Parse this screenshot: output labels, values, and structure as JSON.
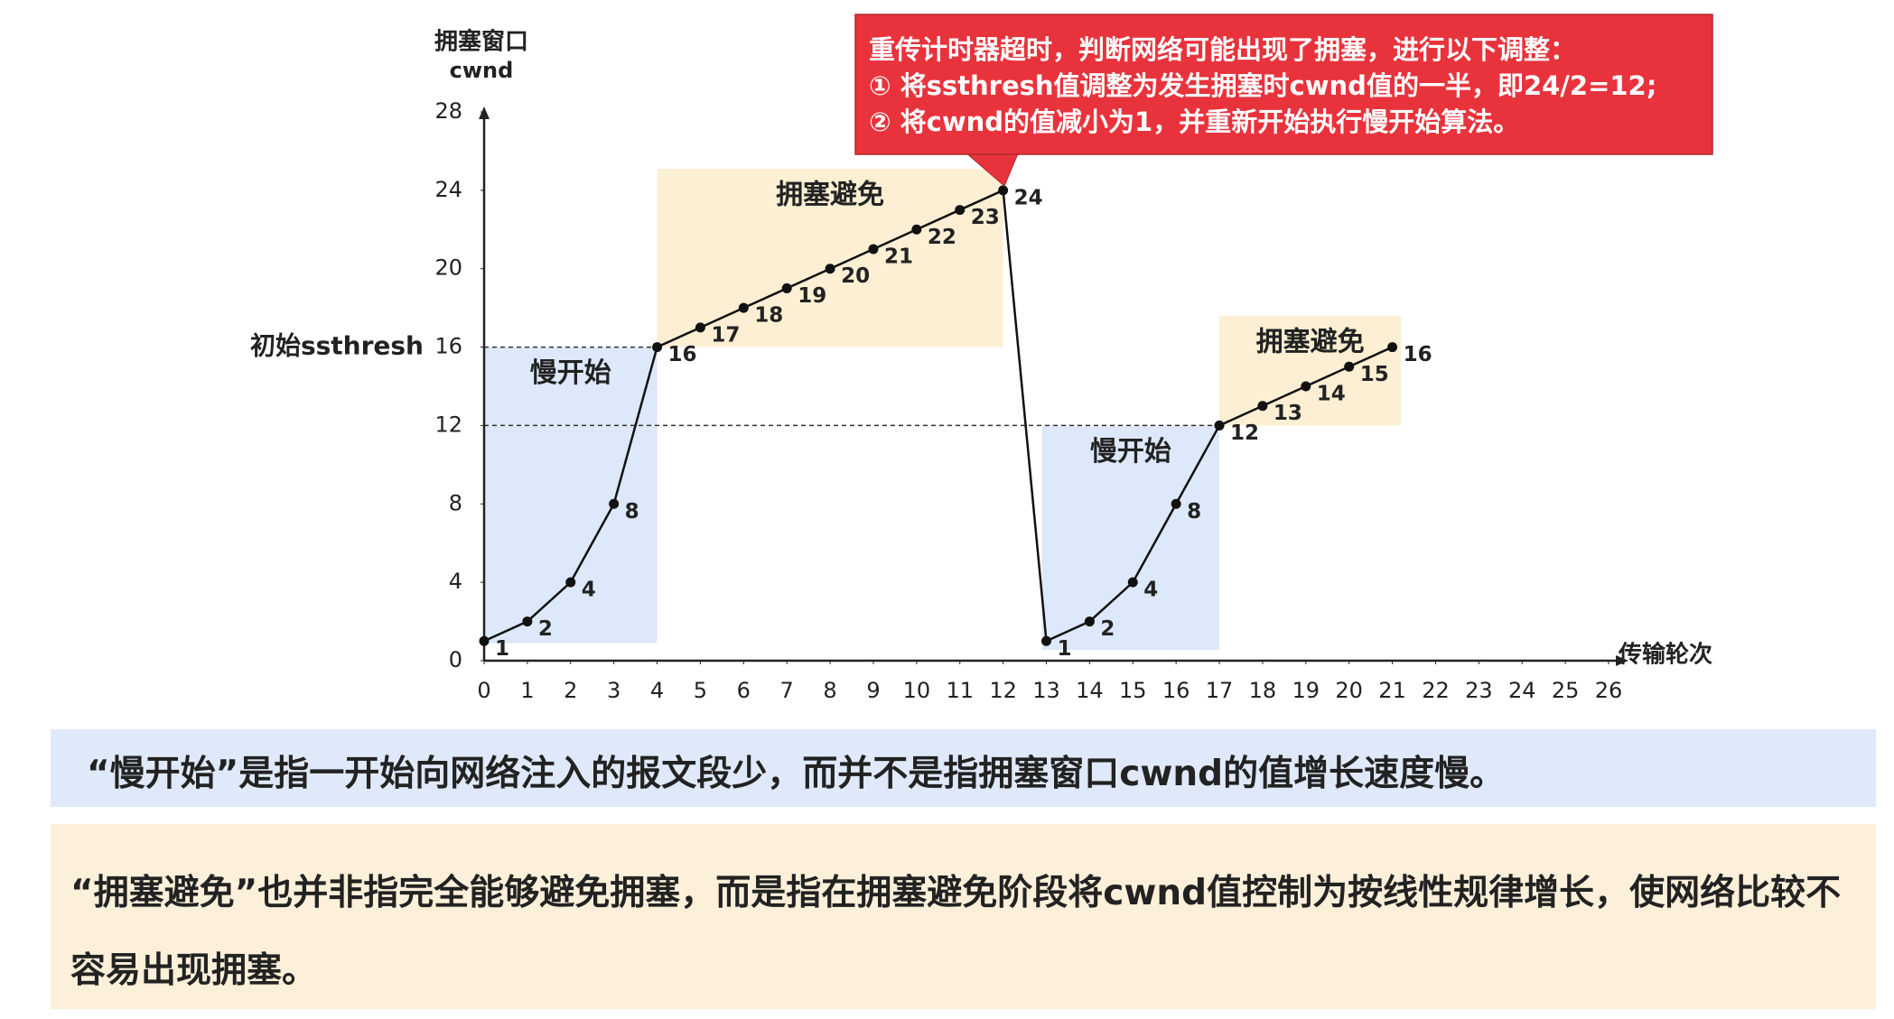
{
  "chart_data": {
    "type": "line",
    "y_label": "拥塞窗口",
    "y_label_sub": "cwnd",
    "x_label": "传输轮次",
    "x": [
      0,
      1,
      2,
      3,
      4,
      5,
      6,
      7,
      8,
      9,
      10,
      11,
      12,
      13,
      14,
      15,
      16,
      17,
      18,
      19,
      20,
      21
    ],
    "series": [
      {
        "color": "#111111",
        "values": [
          1,
          2,
          4,
          8,
          16,
          17,
          18,
          19,
          20,
          21,
          22,
          23,
          24,
          1,
          2,
          4,
          8,
          12,
          13,
          14,
          15,
          16
        ]
      }
    ],
    "xlim": [
      0,
      26
    ],
    "xticks": [
      0,
      1,
      2,
      3,
      4,
      5,
      6,
      7,
      8,
      9,
      10,
      11,
      12,
      13,
      14,
      15,
      16,
      17,
      18,
      19,
      20,
      21,
      22,
      23,
      24,
      25,
      26
    ],
    "ylim": [
      0,
      28
    ],
    "yticks": [
      0,
      4,
      8,
      12,
      16,
      20,
      24,
      28
    ],
    "thresholds": [
      {
        "label": "初始ssthresh",
        "value": 16,
        "x": [
          0,
          4
        ]
      },
      {
        "value": 12,
        "x": [
          0,
          17
        ]
      }
    ],
    "regions": [
      {
        "label": "慢开始",
        "color": "#dde8fa",
        "x": [
          0,
          4
        ],
        "y": [
          0.9,
          16
        ]
      },
      {
        "label": "拥塞避免",
        "color": "#fcefd3",
        "x": [
          4,
          12
        ],
        "y": [
          16,
          25.1
        ]
      },
      {
        "label": "慢开始",
        "color": "#dde8fa",
        "x": [
          12.9,
          17
        ],
        "y": [
          0.55,
          12
        ]
      },
      {
        "label": "拥塞避免",
        "color": "#fcefd3",
        "x": [
          17,
          21.2
        ],
        "y": [
          12,
          17.6
        ]
      }
    ],
    "callout": {
      "color": "#e8333c",
      "lines": [
        "重传计时器超时，判断网络可能出现了拥塞，进行以下调整：",
        "① 将ssthresh值调整为发生拥塞时cwnd值的一半，即24/2=12;",
        "② 将cwnd的值减小为1，并重新开始执行慢开始算法。"
      ]
    }
  },
  "notes": [
    "“慢开始”是指一开始向网络注入的报文段少，而并不是指拥塞窗口cwnd的值增长速度慢。",
    "“拥塞避免”也并非指完全能够避免拥塞，而是指在拥塞避免阶段将cwnd值控制为按线性规律增长，使网络比较不容易出现拥塞。"
  ]
}
